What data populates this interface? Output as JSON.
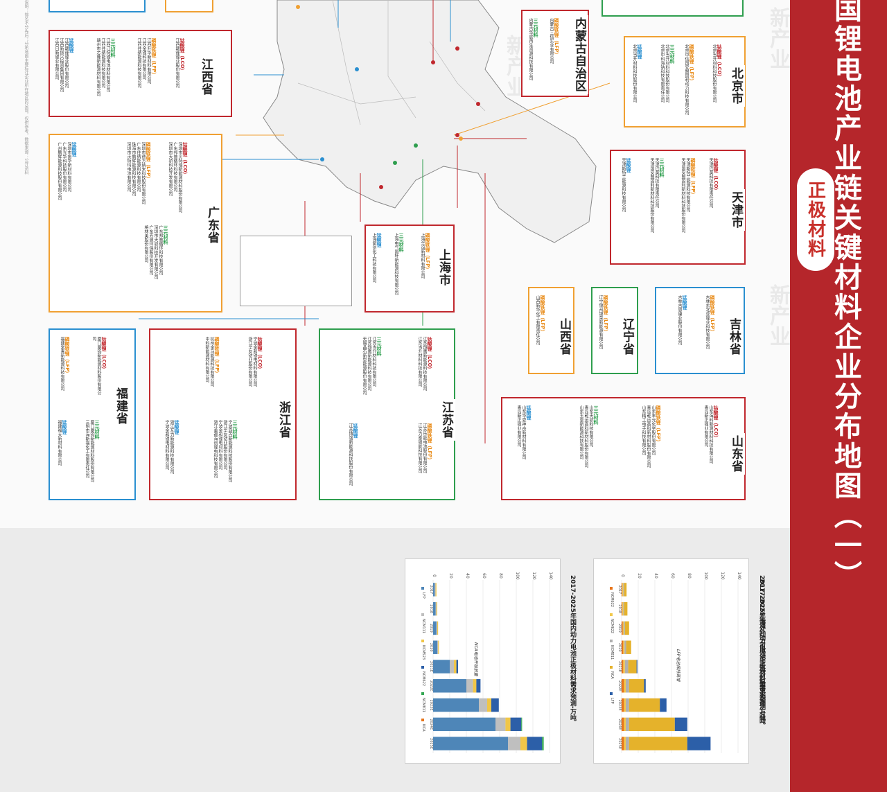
{
  "header": {
    "title": "国锂电池产业链关键材料企业分布地图（一）",
    "subtitle": "正极材料",
    "source": "说明：排名不分先后；分布地图主要标注企业所在地区的总部，仅供参考。数据来源：公开资料"
  },
  "labels": {
    "lco": "钴酸锂（LCO）",
    "lfp": "磷酸铁锂（LFP）",
    "ncm": "三元材料",
    "lmo": "锰酸锂"
  },
  "watermark": "新产业",
  "colors": {
    "primary": "#b5262b",
    "lco": "#c0272d",
    "lfp": "#f0a032",
    "ncm": "#2e9e4e",
    "lmo": "#2a8fd0"
  },
  "provinces": {
    "jiangxi": {
      "name": "江西省",
      "lco": [
        "江西赣锋锂业股份有限公司"
      ],
      "lfp": [
        "江西升华新材料有限公司",
        "江西金锂科技有限公司",
        "江西佳纳能源科技有限公司"
      ],
      "ncm": [
        "江西江特锂电池材料有限公司",
        "江西佳纳能源科技有限公司",
        "赣州市芯隆新能源材料有限公司"
      ],
      "lmo": [
        "江西赣锋锂业股份有限公司",
        "江西新振兴投资集团有限公司",
        "江西日新锂业有限公司"
      ]
    },
    "guangdong": {
      "name": "广东省",
      "lco": [
        "深圳市贝特瑞新能源材料股份有限公司",
        "广东邦普循环科技有限公司",
        "深圳市天骄科技开发有限公司"
      ],
      "lfp": [
        "深圳市德方纳米科技股份有限公司",
        "广东佳纳能源科技有限公司",
        "珠海市鹏辉能源科技有限公司",
        "深圳市沃特玛电池有限公司"
      ],
      "ncm": [
        "广东邦普循环科技有限公司",
        "深圳市天骄科技开发有限公司",
        "广东芳源环保股份有限公司",
        "格林美股份有限公司"
      ],
      "lmo": [
        "深圳市振华新材料有限公司",
        "广东光华科技股份有限公司",
        "广州鹏辉能源科技股份有限公司"
      ]
    },
    "fujian": {
      "name": "福建省",
      "lco": [
        "厦门厦钨新能源材料股份有限公司"
      ],
      "lfp": [
        "福建常青新能源科技有限公司"
      ],
      "ncm": [
        "厦门厦钨新能源材料股份有限公司",
        "三明市海斯福化工有限责任公司"
      ],
      "lmo": [
        "福建福大新材料有限公司"
      ]
    },
    "zhejiang": {
      "name": "浙江省",
      "lco": [
        "宁波金和锂电材料有限公司",
        "浙江华友钴业股份有限公司"
      ],
      "lfp": [
        "杭州金马能源科技有限公司",
        "中科新能源材料有限公司"
      ],
      "ncm": [
        "宁波容百新能源科技股份有限公司",
        "浙江华友钴业股份有限公司",
        "宁波金和锂电材料有限公司",
        "浙江美都海创锂电科技有限公司"
      ],
      "lmo": [
        "浙江瓦力新能源科技有限公司",
        "宁波金和锂电材料有限公司"
      ]
    },
    "jiangsu": {
      "name": "江苏省",
      "lco": [
        "江苏翔鹰新能源科技有限公司",
        "江苏当升材料科技有限公司"
      ],
      "lfp": [
        "江苏乐能电池股份有限公司",
        "江苏力泰锂能科技有限公司"
      ],
      "ncm": [
        "江苏当升材料科技有限公司",
        "江苏翔鹰新能源科技有限公司",
        "无锡晶石新型能源股份有限公司"
      ],
      "lmo": [
        "江苏博强新能源科技股份有限公司"
      ]
    },
    "shanghai": {
      "name": "上海市",
      "lfp": [
        "上海华谊新材料有限公司"
      ],
      "ncm": [
        "上海电气国轩新能源科技有限公司"
      ],
      "lmo": [
        "上海紫剑化工科技有限公司"
      ]
    },
    "shanxi": {
      "name": "山西省",
      "lfp": [
        "山西新华化工有限责任公司"
      ]
    },
    "liaoning": {
      "name": "辽宁省",
      "lfp": [
        "辽宁锦州锦荣新能源有限公司"
      ]
    },
    "jilin": {
      "name": "吉林省",
      "lfp": [
        "吉林东北亚锂业科技有限公司"
      ],
      "lmo": [
        "吉林吉恩镍业股份有限公司"
      ]
    },
    "shandong": {
      "name": "山东省",
      "lco": [
        "山东海科新源材料科技有限公司",
        "青岛新正锂业有限公司"
      ],
      "lfp": [
        "山东丰元化学股份有限公司",
        "青岛乾运高科新材料股份有限公司",
        "山东精工电子科技有限公司"
      ],
      "ncm": [
        "山东天骄科技有限公司",
        "青岛乾运高科新材料股份有限公司",
        "山东玉皇新能源科技有限公司"
      ],
      "lmo": [
        "山东华夏神舟新材料有限公司",
        "青岛新正锂业有限公司"
      ]
    },
    "tianjin": {
      "name": "天津市",
      "lco": [
        "天津巴莫科技有限责任公司"
      ],
      "lfp": [
        "天津斯特兰能源科技有限公司",
        "天津国安盟固利新材料科技股份有限公司"
      ],
      "ncm": [
        "天津巴莫科技有限责任公司",
        "天津国安盟固利新材料科技股份有限公司"
      ],
      "lmo": [
        "天津斯特兰能源科技有限公司"
      ]
    },
    "beijing": {
      "name": "北京市",
      "lco": [
        "北京当升材料科技股份有限公司"
      ],
      "lfp": [
        "北京中信国安盟固利动力科技有限公司"
      ],
      "ncm": [
        "北京当升材料科技股份有限公司",
        "北京中科海钠科技有限责任公司"
      ],
      "lmo": [
        "北京当升材料科技股份有限公司"
      ]
    },
    "neimenggu": {
      "name": "内蒙古自治区",
      "lfp": [
        "内蒙古三信实业有限公司"
      ],
      "ncm": [
        "内蒙古华宸再生资源科技有限公司"
      ]
    }
  },
  "charts": [
    {
      "title": "2017-2025年海外动力电池正极材料需求预测-万吨",
      "annotation": "LFP电池保持高增",
      "categories": [
        "2017",
        "2018",
        "2019",
        "2020",
        "2021E",
        "2022E",
        "2023E",
        "2024E",
        "2025E"
      ],
      "ymax": 140,
      "ticks": [
        0,
        20,
        40,
        60,
        80,
        100,
        120,
        140
      ],
      "legend": [
        "NCM622",
        "NCM622",
        "NCM811",
        "NCA",
        "LFP"
      ],
      "series": [
        {
          "name": "NCM622",
          "color": "#e8751a",
          "values": [
            1,
            1,
            1.5,
            2,
            2,
            3,
            3,
            3,
            3
          ]
        },
        {
          "name": "NCM622",
          "color": "#f2c94c",
          "values": [
            1,
            1,
            1,
            1.5,
            2,
            2,
            2,
            2,
            2
          ]
        },
        {
          "name": "NCM811",
          "color": "#b0b0b0",
          "values": [
            1,
            1,
            1.5,
            2,
            4,
            4,
            4,
            4,
            4
          ]
        },
        {
          "name": "NCA",
          "color": "#e5b22b",
          "values": [
            3,
            4,
            5,
            6,
            10,
            18,
            37,
            55,
            70
          ]
        },
        {
          "name": "LFP",
          "color": "#2c5fa8",
          "values": [
            0,
            0,
            0,
            0,
            1,
            2,
            8,
            15,
            28
          ]
        }
      ]
    },
    {
      "title": "2017-2025年国内动力电池正极材料需求预测-万吨",
      "annotation": "NCA电池开始放量",
      "categories": [
        "2017",
        "2018",
        "2019",
        "2020",
        "2021E",
        "2022E",
        "2023E",
        "2024E",
        "2025E"
      ],
      "ymax": 140,
      "ticks": [
        0,
        20,
        40,
        60,
        80,
        100,
        120,
        140
      ],
      "legend": [
        "LFP",
        "NCM111",
        "NCM523",
        "NCM622",
        "NCM811",
        "NCA"
      ],
      "series": [
        {
          "name": "LFP",
          "color": "#4e86b8",
          "values": [
            2,
            3,
            4,
            5,
            20,
            40,
            55,
            75,
            90
          ]
        },
        {
          "name": "NCM111",
          "color": "#bfbfbf",
          "values": [
            1,
            1,
            1,
            1,
            5,
            8,
            10,
            12,
            15
          ]
        },
        {
          "name": "NCM523",
          "color": "#f0c648",
          "values": [
            1,
            1,
            1,
            1,
            3,
            4,
            5,
            6,
            8
          ]
        },
        {
          "name": "NCM622",
          "color": "#2c5fa8",
          "values": [
            0,
            0,
            0,
            0,
            2,
            5,
            9,
            13,
            18
          ]
        },
        {
          "name": "NCM811",
          "color": "#35a853",
          "values": [
            0,
            0,
            0,
            0,
            0,
            0,
            0,
            1,
            2
          ]
        },
        {
          "name": "NCA",
          "color": "#e8751a",
          "values": [
            0,
            0,
            0,
            0,
            0,
            0,
            0,
            0,
            0
          ]
        }
      ]
    }
  ]
}
